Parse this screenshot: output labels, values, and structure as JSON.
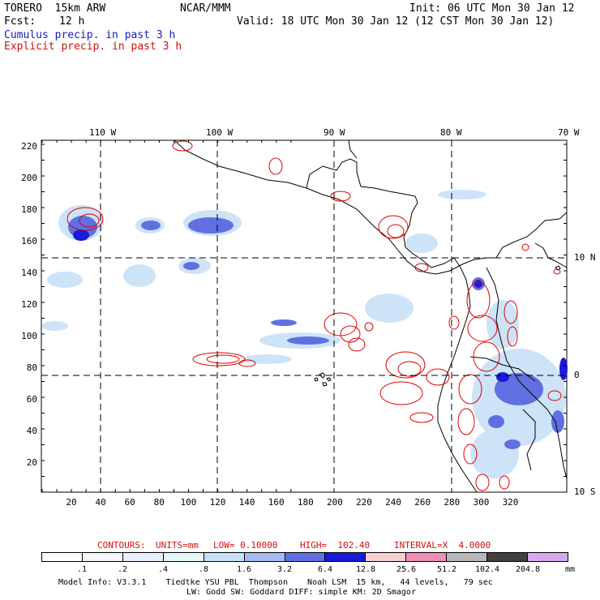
{
  "header": {
    "model": "TORERO  15km ARW",
    "org": "NCAR/MMM",
    "init": "Init: 06 UTC Mon 30 Jan 12",
    "fcst_label": "Fcst:",
    "fcst_value": "12 h",
    "valid": "Valid: 18 UTC Mon 30 Jan 12 (12 CST Mon 30 Jan 12)",
    "field1": "Cumulus precip. in past 3 h",
    "field2": "Explicit precip. in past 3 h"
  },
  "axes": {
    "top_lon_labels": [
      "110 W",
      "100 W",
      "90 W",
      "80 W",
      "70 W"
    ],
    "right_lat_labels": [
      "10 N",
      "0",
      "10 S"
    ],
    "left_ticks": [
      "220",
      "200",
      "180",
      "160",
      "140",
      "120",
      "100",
      "80",
      "60",
      "40",
      "20"
    ],
    "bottom_ticks": [
      "20",
      "40",
      "60",
      "80",
      "100",
      "120",
      "140",
      "160",
      "180",
      "200",
      "220",
      "240",
      "260",
      "280",
      "300",
      "320"
    ]
  },
  "contour_info": {
    "contours": "CONTOURS:",
    "units": "UNITS=mm",
    "low": "LOW= 0.10000",
    "high": "HIGH=  102.40",
    "interval": "INTERVAL=X  4.0000"
  },
  "colorbar": {
    "levels": [
      ".1",
      ".2",
      ".4",
      ".8",
      "1.6",
      "3.2",
      "6.4",
      "12.8",
      "25.6",
      "51.2",
      "102.4",
      "204.8"
    ],
    "unit": "mm",
    "colors": [
      "#ffffff",
      "#f4f8fc",
      "#e8f0ff",
      "#e4f8f8",
      "#c8e0f8",
      "#a8b8f0",
      "#6070e0",
      "#1a1ad8",
      "#f8d0d0",
      "#f090b8",
      "#b8b8b8",
      "#404040",
      "#d8a8f0"
    ]
  },
  "footer": {
    "line1": "Model Info: V3.3.1    Tiedtke YSU PBL  Thompson    Noah LSM  15 km,   44 levels,   79 sec",
    "line2": "LW: Godd SW: Goddard DIFF: simple KM: 2D Smagor"
  },
  "colors": {
    "cumulus_text": "#1a1ab8",
    "explicit_text": "#d01010",
    "explicit_contour": "#e00000",
    "coastline": "#000000"
  }
}
